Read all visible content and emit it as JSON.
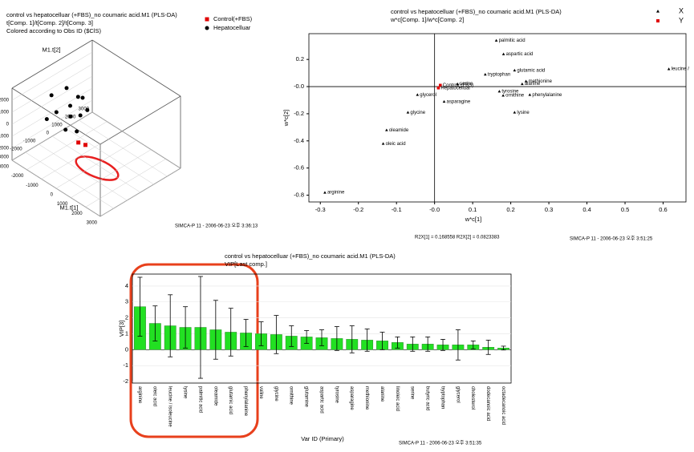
{
  "chart_data": [
    {
      "type": "scatter3d",
      "title": "control vs hepatocelluar (+FBS)_no coumaric acid.M1 (PLS-DA)",
      "subtitle": "t[Comp. 1]/t[Comp. 2]/t[Comp. 3]",
      "note": "Colored according to Obs ID ($ClS)",
      "footer": "SIMCA-P 11 - 2006-06-23 오후 3:36:13",
      "xlabel": "M1.t[1]",
      "ylabel": "M1.t[2]",
      "zlabel": "M1.t[3]",
      "xlim": [
        -3000,
        3000
      ],
      "ylim": [
        -3000,
        3000
      ],
      "zlim": [
        -3000,
        3000
      ],
      "xticks": [
        -3000,
        -2000,
        -1000,
        0,
        1000,
        2000,
        3000
      ],
      "yticks": [
        -3000,
        -2000,
        -1000,
        0,
        1000,
        2000,
        3000
      ],
      "zticks": [
        -2000,
        -1000,
        0,
        1000,
        2000
      ],
      "series": [
        {
          "name": "Control(+FBS)",
          "color": "#e00000",
          "marker": "square",
          "x": [
            -400,
            -100
          ],
          "y": [
            -900,
            -700
          ],
          "z": [
            -900,
            -1000
          ]
        },
        {
          "name": "Hepatocelluar",
          "color": "#000000",
          "marker": "circle",
          "x": [
            -2500,
            -2200,
            -1800,
            -1500,
            -1200,
            -2000,
            -900,
            -1600,
            -600,
            -1000,
            -700,
            -1300
          ],
          "y": [
            -600,
            200,
            -1000,
            -300,
            300,
            -1500,
            -200,
            400,
            -800,
            -1200,
            100,
            -500
          ],
          "z": [
            1200,
            1500,
            600,
            900,
            1400,
            200,
            500,
            1100,
            -200,
            -100,
            900,
            300
          ]
        }
      ]
    },
    {
      "type": "scatter",
      "title": "control vs hepatocelluar (+FBS)_no coumaric acid.M1 (PLS-DA)",
      "subtitle": "w*c[Comp. 1]/w*c[Comp. 2]",
      "xlabel": "w*c[1]",
      "ylabel": "w*c[2]",
      "stats": "R2X[1] = 0.168558      R2X[2] = 0.0823383",
      "footer": "SIMCA-P 11 - 2006-06-23 오후 3:51:25",
      "xlim": [
        -0.33,
        0.66
      ],
      "ylim": [
        -0.85,
        0.39
      ],
      "xticks": [
        -0.3,
        -0.2,
        -0.1,
        {
          "value": 0,
          "label": "-0.0"
        },
        0.1,
        0.2,
        0.3,
        0.4,
        0.5,
        0.6
      ],
      "yticks": [
        -0.8,
        -0.6,
        -0.4,
        -0.2,
        {
          "value": 0,
          "label": "-0.0"
        },
        0.2
      ],
      "series": [
        {
          "name": "X",
          "color": "#000000",
          "marker": "triangle",
          "labels": [
            "palmitic acid",
            "aspartic acid",
            "glutamic acid",
            "tryptophan",
            "leucine /",
            "methionine",
            "alanine",
            "tyrosine",
            "ornithine",
            "phenylalanine",
            "lysine",
            "glycine",
            "oleamide",
            "oleic acid",
            "arginine",
            "asparagine",
            "serine",
            "glycerol"
          ],
          "x": [
            0.162,
            0.181,
            0.21,
            0.133,
            0.615,
            0.24,
            0.23,
            0.17,
            0.18,
            0.25,
            0.21,
            -0.07,
            -0.126,
            -0.135,
            -0.288,
            0.025,
            0.06,
            -0.045
          ],
          "y": [
            0.34,
            0.24,
            0.12,
            0.09,
            0.13,
            0.04,
            0.02,
            -0.035,
            -0.065,
            -0.06,
            -0.19,
            -0.19,
            -0.32,
            -0.42,
            -0.78,
            -0.11,
            0.02,
            -0.06
          ]
        },
        {
          "name": "Y",
          "color": "#e00000",
          "marker": "square",
          "labels": [
            "Control(+FBS)",
            "Hepatocelluar"
          ],
          "x": [
            0.015,
            0.01
          ],
          "y": [
            0.01,
            -0.01
          ]
        }
      ]
    },
    {
      "type": "bar",
      "title": "control vs hepatocelluar (+FBS)_no coumaric acid.M1 (PLS-DA)",
      "subtitle": "VIP[Last comp.]",
      "ylabel": "VIP[3]",
      "xlabel": "Var ID (Primary)",
      "footer": "SIMCA-P 11 - 2006-06-23 오후 3:51:35",
      "color": "#22e022",
      "ylim": [
        -2.1,
        4.75
      ],
      "yticks": [
        -2,
        -1,
        0,
        1,
        2,
        3,
        4
      ],
      "categories": [
        "arginine",
        "oleic acid",
        "leucine / isoleucine",
        "lysine",
        "palmitic acid",
        "oleamide",
        "glutamic acid",
        "phenylalanine",
        "valine",
        "glycine",
        "ornithine",
        "glutamine",
        "aspartic acid",
        "tyrosine",
        "asparagine",
        "methionine",
        "alanine",
        "linoleic acid",
        "serine",
        "butyric acid",
        "tryptophan",
        "glycerol",
        "cholesterol",
        "dodecanoic acid",
        "octadecanoic acid"
      ],
      "values": [
        2.7,
        1.65,
        1.5,
        1.4,
        1.4,
        1.25,
        1.1,
        1.05,
        1.0,
        0.95,
        0.85,
        0.8,
        0.75,
        0.7,
        0.65,
        0.6,
        0.55,
        0.45,
        0.35,
        0.35,
        0.3,
        0.3,
        0.3,
        0.15,
        0.1
      ],
      "errors": [
        1.85,
        1.1,
        1.95,
        1.3,
        3.2,
        1.85,
        1.5,
        0.85,
        0.75,
        1.2,
        0.65,
        0.4,
        0.5,
        0.75,
        0.85,
        0.7,
        0.55,
        0.35,
        0.45,
        0.45,
        0.35,
        0.95,
        0.25,
        0.45,
        0.12
      ]
    }
  ]
}
